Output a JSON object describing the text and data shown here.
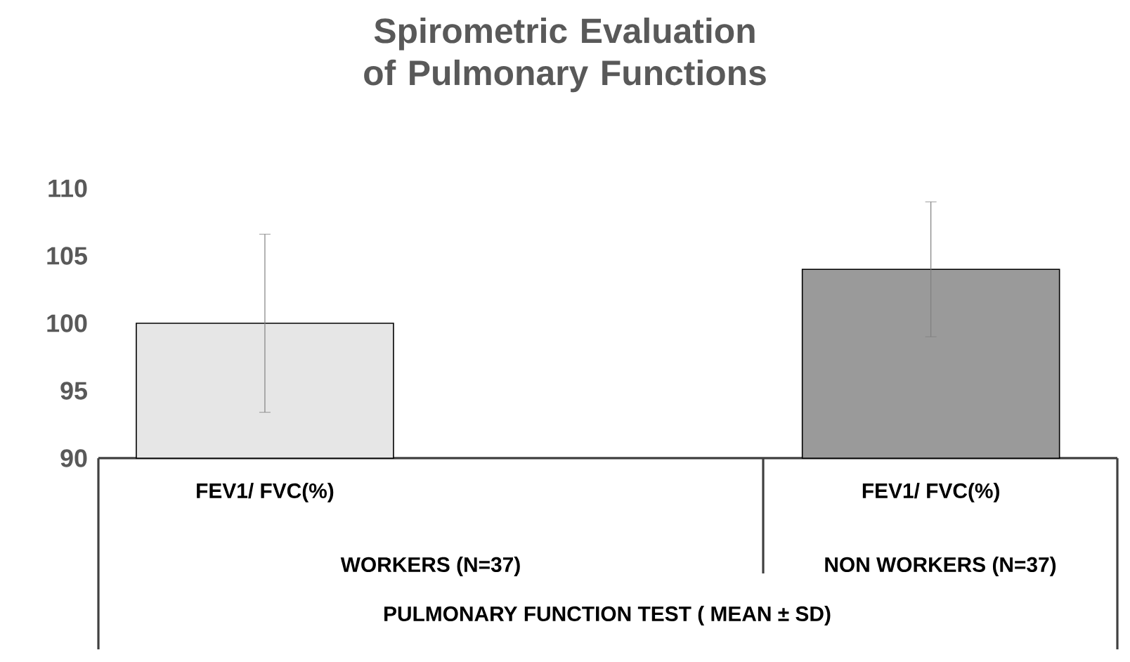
{
  "chart_data": {
    "type": "bar",
    "title": "Spirometric Evaluation of Pulmonary Functions",
    "categories": [
      "FEV1/ FVC(%)",
      "FEV1/ FVC(%)"
    ],
    "values": [
      100,
      104
    ],
    "errors": [
      6.6,
      5
    ],
    "colors": [
      "#e6e6e6",
      "#9a9a9a"
    ],
    "ylim": [
      90,
      110
    ],
    "yticks": [
      90,
      95,
      100,
      105,
      110
    ],
    "xlabel": "PULMONARY FUNCTION TEST ( MEAN ± SD)",
    "annotations": [
      "WORKERS (N=37)",
      "NON WORKERS (N=37)"
    ]
  }
}
